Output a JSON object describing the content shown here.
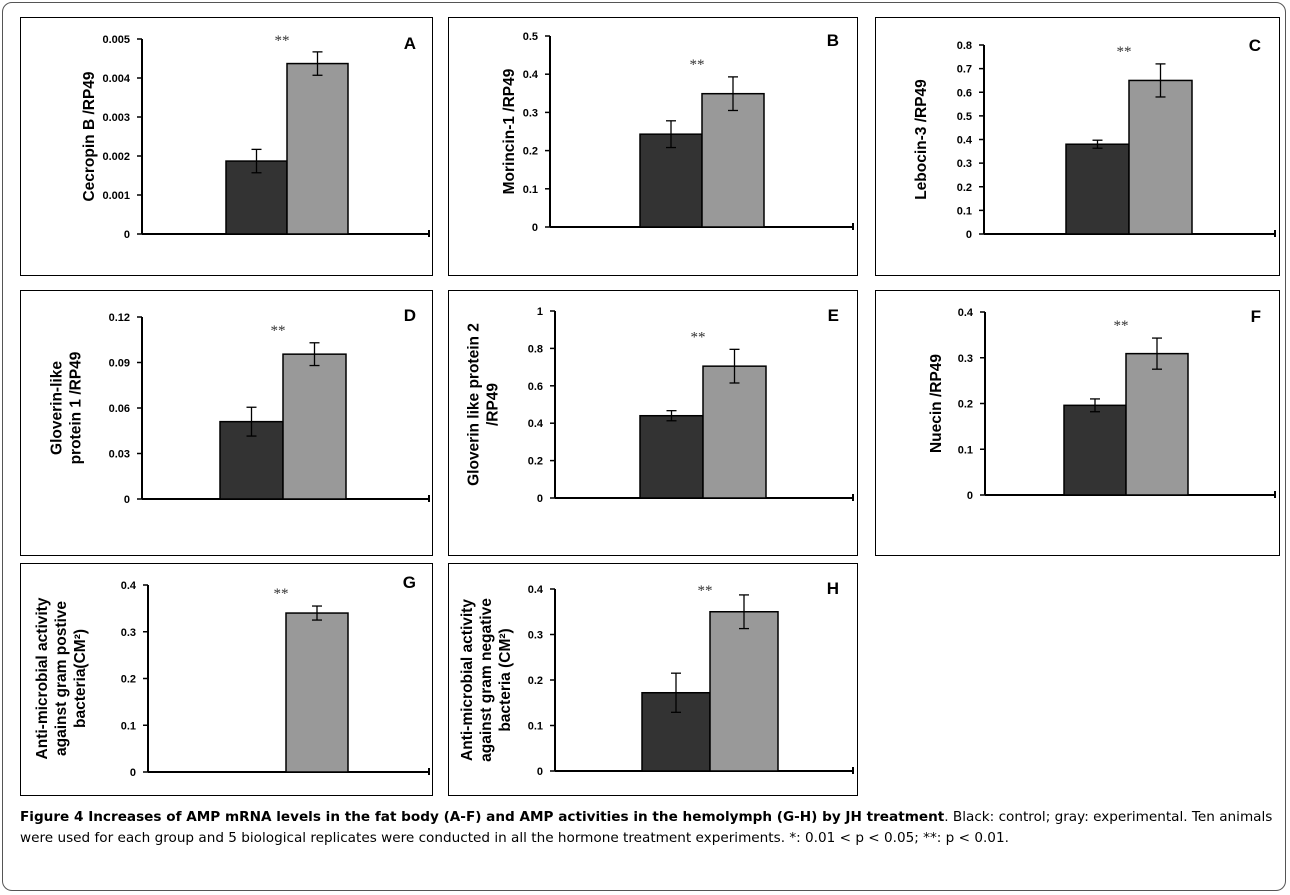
{
  "figure": {
    "caption_title": "Figure 4 Increases of AMP mRNA levels in the fat body (A-F) and AMP activities in the hemolymph (G-H) by JH treatment",
    "caption_text": ". Black: control; gray: experimental. Ten animals were used for each group and 5 biological replicates were conducted in all the hormone treatment experiments. *: 0.01 < p < 0.05; **: p < 0.01."
  },
  "colors": {
    "control": "#333333",
    "experimental": "#999999",
    "axis": "#000000"
  },
  "chart_data": [
    {
      "id": "A",
      "type": "bar",
      "letter": "A",
      "ylabel_lines": [
        "Cecropin B /RP49"
      ],
      "ylim": [
        0,
        0.005
      ],
      "yticks": [
        0,
        0.001,
        0.002,
        0.003,
        0.004,
        0.005
      ],
      "ytick_labels": [
        "0",
        "0.001",
        "0.002",
        "0.003",
        "0.004",
        "0.005"
      ],
      "series": [
        {
          "values": [
            0.00187
          ],
          "errors": [
            0.0003
          ]
        },
        {
          "values": [
            0.00437
          ],
          "errors": [
            0.0003
          ]
        }
      ],
      "significance": "**"
    },
    {
      "id": "B",
      "type": "bar",
      "letter": "B",
      "ylabel_lines": [
        "Morincin-1 /RP49"
      ],
      "ylim": [
        0,
        0.5
      ],
      "yticks": [
        0,
        0.1,
        0.2,
        0.3,
        0.4,
        0.5
      ],
      "ytick_labels": [
        "0",
        "0.1",
        "0.2",
        "0.3",
        "0.4",
        "0.5"
      ],
      "series": [
        {
          "values": [
            0.243
          ],
          "errors": [
            0.035
          ]
        },
        {
          "values": [
            0.349
          ],
          "errors": [
            0.044
          ]
        }
      ],
      "significance": "**"
    },
    {
      "id": "C",
      "type": "bar",
      "letter": "C",
      "ylabel_lines": [
        "Lebocin-3 /RP49"
      ],
      "ylim": [
        0,
        0.8
      ],
      "yticks": [
        0,
        0.1,
        0.2,
        0.3,
        0.4,
        0.5,
        0.6,
        0.7,
        0.8
      ],
      "ytick_labels": [
        "0",
        "0.1",
        "0.2",
        "0.3",
        "0.4",
        "0.5",
        "0.6",
        "0.7",
        "0.8"
      ],
      "series": [
        {
          "values": [
            0.38
          ],
          "errors": [
            0.017
          ]
        },
        {
          "values": [
            0.65
          ],
          "errors": [
            0.07
          ]
        }
      ],
      "significance": "**"
    },
    {
      "id": "D",
      "type": "bar",
      "letter": "D",
      "ylabel_lines": [
        "Gloverin-like",
        "protein 1 /RP49"
      ],
      "ylim": [
        0,
        0.12
      ],
      "yticks": [
        0,
        0.03,
        0.06,
        0.09,
        0.12
      ],
      "ytick_labels": [
        "0",
        "0.03",
        "0.06",
        "0.09",
        "0.12"
      ],
      "series": [
        {
          "values": [
            0.051
          ],
          "errors": [
            0.0095
          ]
        },
        {
          "values": [
            0.0955
          ],
          "errors": [
            0.0075
          ]
        }
      ],
      "significance": "**"
    },
    {
      "id": "E",
      "type": "bar",
      "letter": "E",
      "ylabel_lines": [
        "Gloverin like protein 2",
        "/RP49"
      ],
      "ylim": [
        0,
        1
      ],
      "yticks": [
        0,
        0.2,
        0.4,
        0.6,
        0.8,
        1
      ],
      "ytick_labels": [
        "0",
        "0.2",
        "0.4",
        "0.6",
        "0.8",
        "1"
      ],
      "series": [
        {
          "values": [
            0.44
          ],
          "errors": [
            0.027
          ]
        },
        {
          "values": [
            0.705
          ],
          "errors": [
            0.09
          ]
        }
      ],
      "significance": "**"
    },
    {
      "id": "F",
      "type": "bar",
      "letter": "F",
      "ylabel_lines": [
        "Nuecin /RP49"
      ],
      "ylim": [
        0,
        0.4
      ],
      "yticks": [
        0,
        0.1,
        0.2,
        0.3,
        0.4
      ],
      "ytick_labels": [
        "0",
        "0.1",
        "0.2",
        "0.3",
        "0.4"
      ],
      "series": [
        {
          "values": [
            0.196
          ],
          "errors": [
            0.014
          ]
        },
        {
          "values": [
            0.309
          ],
          "errors": [
            0.034
          ]
        }
      ],
      "significance": "**"
    },
    {
      "id": "G",
      "type": "bar",
      "letter": "G",
      "ylabel_lines": [
        "Anti-microbial activity",
        "against gram postive",
        "bacteria(CM²)"
      ],
      "ylim": [
        0,
        0.4
      ],
      "yticks": [
        0,
        0.1,
        0.2,
        0.3,
        0.4
      ],
      "ytick_labels": [
        "0",
        "0.1",
        "0.2",
        "0.3",
        "0.4"
      ],
      "series": [
        {
          "values": [
            null
          ],
          "errors": [
            null
          ]
        },
        {
          "values": [
            0.34
          ],
          "errors": [
            0.015
          ]
        }
      ],
      "significance": "**"
    },
    {
      "id": "H",
      "type": "bar",
      "letter": "H",
      "ylabel_lines": [
        "Anti-microbial activity",
        "against gram negative",
        "bacteria (CM²)"
      ],
      "ylim": [
        0,
        0.4
      ],
      "yticks": [
        0,
        0.1,
        0.2,
        0.3,
        0.4
      ],
      "ytick_labels": [
        "0",
        "0.1",
        "0.2",
        "0.3",
        "0.4"
      ],
      "series": [
        {
          "values": [
            0.172
          ],
          "errors": [
            0.043
          ]
        },
        {
          "values": [
            0.35
          ],
          "errors": [
            0.037
          ]
        }
      ],
      "significance": "**"
    }
  ]
}
